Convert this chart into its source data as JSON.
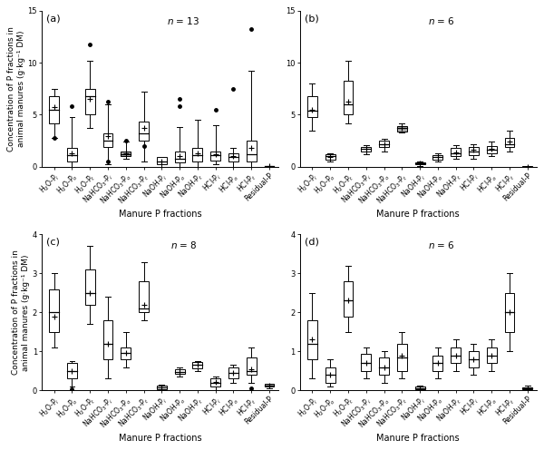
{
  "subplots": [
    {
      "label": "(a)",
      "n_val": "13",
      "ylim": [
        0,
        15
      ],
      "yticks": [
        0,
        5,
        10,
        15
      ],
      "boxes": [
        {
          "whislo": 2.8,
          "q1": 4.2,
          "med": 5.5,
          "q3": 6.8,
          "whishi": 7.5,
          "mean": 5.7,
          "fliers": [
            2.8
          ],
          "gray": false
        },
        {
          "whislo": 0.0,
          "q1": 0.5,
          "med": 1.1,
          "q3": 1.8,
          "whishi": 4.8,
          "mean": 1.3,
          "fliers": [
            5.8
          ],
          "gray": false
        },
        {
          "whislo": 3.7,
          "q1": 5.0,
          "med": 6.8,
          "q3": 7.5,
          "whishi": 10.2,
          "mean": 6.5,
          "fliers": [
            11.8
          ],
          "gray": false
        },
        {
          "whislo": 0.2,
          "q1": 1.9,
          "med": 2.5,
          "q3": 3.2,
          "whishi": 6.0,
          "mean": 2.9,
          "fliers": [
            0.5,
            6.3
          ],
          "gray": false
        },
        {
          "whislo": 0.8,
          "q1": 1.0,
          "med": 1.2,
          "q3": 1.5,
          "whishi": 2.4,
          "mean": 1.3,
          "fliers": [
            2.5
          ],
          "gray": true
        },
        {
          "whislo": 0.5,
          "q1": 2.5,
          "med": 3.2,
          "q3": 4.3,
          "whishi": 7.2,
          "mean": 3.7,
          "fliers": [
            2.0
          ],
          "gray": false
        },
        {
          "whislo": 0.0,
          "q1": 0.2,
          "med": 0.5,
          "q3": 0.9,
          "whishi": 0.9,
          "mean": 0.5,
          "fliers": [],
          "gray": false
        },
        {
          "whislo": 0.0,
          "q1": 0.4,
          "med": 0.8,
          "q3": 1.5,
          "whishi": 3.8,
          "mean": 1.0,
          "fliers": [
            5.8,
            6.5
          ],
          "gray": false
        },
        {
          "whislo": 0.0,
          "q1": 0.5,
          "med": 1.1,
          "q3": 1.8,
          "whishi": 4.5,
          "mean": 1.3,
          "fliers": [],
          "gray": false
        },
        {
          "whislo": 0.2,
          "q1": 0.6,
          "med": 1.1,
          "q3": 1.5,
          "whishi": 4.0,
          "mean": 1.2,
          "fliers": [
            5.5
          ],
          "gray": false
        },
        {
          "whislo": 0.0,
          "q1": 0.5,
          "med": 0.9,
          "q3": 1.3,
          "whishi": 1.8,
          "mean": 1.0,
          "fliers": [
            7.5
          ],
          "gray": false
        },
        {
          "whislo": 0.0,
          "q1": 0.5,
          "med": 1.2,
          "q3": 2.5,
          "whishi": 9.2,
          "mean": 1.8,
          "fliers": [
            13.2
          ],
          "gray": false
        },
        {
          "whislo": 0.0,
          "q1": 0.0,
          "med": 0.02,
          "q3": 0.05,
          "whishi": 0.05,
          "mean": 0.02,
          "fliers": [],
          "gray": false
        }
      ]
    },
    {
      "label": "(b)",
      "n_val": "6",
      "ylim": [
        0,
        15
      ],
      "yticks": [
        0,
        5,
        10,
        15
      ],
      "boxes": [
        {
          "whislo": 3.5,
          "q1": 4.8,
          "med": 5.4,
          "q3": 6.8,
          "whishi": 8.0,
          "mean": 5.5,
          "fliers": [],
          "gray": false
        },
        {
          "whislo": 0.5,
          "q1": 0.7,
          "med": 1.0,
          "q3": 1.2,
          "whishi": 1.3,
          "mean": 0.9,
          "fliers": [],
          "gray": false
        },
        {
          "whislo": 4.2,
          "q1": 5.0,
          "med": 6.0,
          "q3": 8.3,
          "whishi": 10.2,
          "mean": 6.3,
          "fliers": [],
          "gray": false
        },
        {
          "whislo": 1.2,
          "q1": 1.5,
          "med": 1.7,
          "q3": 1.9,
          "whishi": 2.1,
          "mean": 1.7,
          "fliers": [],
          "gray": false
        },
        {
          "whislo": 1.5,
          "q1": 1.9,
          "med": 2.2,
          "q3": 2.5,
          "whishi": 2.7,
          "mean": 2.2,
          "fliers": [],
          "gray": false
        },
        {
          "whislo": 3.3,
          "q1": 3.4,
          "med": 3.7,
          "q3": 3.9,
          "whishi": 4.2,
          "mean": 3.7,
          "fliers": [],
          "gray": true
        },
        {
          "whislo": 0.1,
          "q1": 0.2,
          "med": 0.3,
          "q3": 0.4,
          "whishi": 0.5,
          "mean": 0.3,
          "fliers": [],
          "gray": false
        },
        {
          "whislo": 0.5,
          "q1": 0.7,
          "med": 0.9,
          "q3": 1.1,
          "whishi": 1.3,
          "mean": 0.9,
          "fliers": [],
          "gray": false
        },
        {
          "whislo": 0.8,
          "q1": 1.0,
          "med": 1.3,
          "q3": 1.8,
          "whishi": 2.1,
          "mean": 1.4,
          "fliers": [],
          "gray": false
        },
        {
          "whislo": 0.8,
          "q1": 1.1,
          "med": 1.5,
          "q3": 1.9,
          "whishi": 2.2,
          "mean": 1.6,
          "fliers": [],
          "gray": false
        },
        {
          "whislo": 1.0,
          "q1": 1.3,
          "med": 1.6,
          "q3": 2.0,
          "whishi": 2.4,
          "mean": 1.7,
          "fliers": [],
          "gray": false
        },
        {
          "whislo": 1.5,
          "q1": 1.9,
          "med": 2.2,
          "q3": 2.8,
          "whishi": 3.5,
          "mean": 2.4,
          "fliers": [],
          "gray": false
        },
        {
          "whislo": 0.0,
          "q1": 0.0,
          "med": 0.01,
          "q3": 0.03,
          "whishi": 0.05,
          "mean": 0.01,
          "fliers": [],
          "gray": false
        }
      ]
    },
    {
      "label": "(c)",
      "n_val": "8",
      "ylim": [
        0,
        4
      ],
      "yticks": [
        0,
        1,
        2,
        3,
        4
      ],
      "boxes": [
        {
          "whislo": 1.1,
          "q1": 1.5,
          "med": 2.0,
          "q3": 2.6,
          "whishi": 3.0,
          "mean": 1.9,
          "fliers": [],
          "gray": false
        },
        {
          "whislo": 0.1,
          "q1": 0.3,
          "med": 0.5,
          "q3": 0.7,
          "whishi": 0.75,
          "mean": 0.5,
          "fliers": [
            0.03
          ],
          "gray": false
        },
        {
          "whislo": 1.7,
          "q1": 2.2,
          "med": 2.5,
          "q3": 3.1,
          "whishi": 3.7,
          "mean": 2.5,
          "fliers": [],
          "gray": false
        },
        {
          "whislo": 0.3,
          "q1": 0.8,
          "med": 1.2,
          "q3": 1.8,
          "whishi": 2.4,
          "mean": 1.2,
          "fliers": [],
          "gray": false
        },
        {
          "whislo": 0.6,
          "q1": 0.8,
          "med": 0.97,
          "q3": 1.1,
          "whishi": 1.5,
          "mean": 0.97,
          "fliers": [],
          "gray": false
        },
        {
          "whislo": 1.8,
          "q1": 2.0,
          "med": 2.1,
          "q3": 2.8,
          "whishi": 3.3,
          "mean": 2.2,
          "fliers": [],
          "gray": false
        },
        {
          "whislo": 0.0,
          "q1": 0.03,
          "med": 0.08,
          "q3": 0.12,
          "whishi": 0.15,
          "mean": 0.08,
          "fliers": [],
          "gray": false
        },
        {
          "whislo": 0.35,
          "q1": 0.42,
          "med": 0.48,
          "q3": 0.55,
          "whishi": 0.58,
          "mean": 0.48,
          "fliers": [],
          "gray": false
        },
        {
          "whislo": 0.5,
          "q1": 0.57,
          "med": 0.65,
          "q3": 0.72,
          "whishi": 0.75,
          "mean": 0.65,
          "fliers": [],
          "gray": false
        },
        {
          "whislo": 0.0,
          "q1": 0.1,
          "med": 0.2,
          "q3": 0.32,
          "whishi": 0.35,
          "mean": 0.22,
          "fliers": [],
          "gray": false
        },
        {
          "whislo": 0.2,
          "q1": 0.32,
          "med": 0.45,
          "q3": 0.58,
          "whishi": 0.65,
          "mean": 0.45,
          "fliers": [],
          "gray": false
        },
        {
          "whislo": 0.2,
          "q1": 0.4,
          "med": 0.5,
          "q3": 0.85,
          "whishi": 1.1,
          "mean": 0.55,
          "fliers": [
            0.05
          ],
          "gray": false
        },
        {
          "whislo": 0.06,
          "q1": 0.09,
          "med": 0.13,
          "q3": 0.16,
          "whishi": 0.18,
          "mean": 0.13,
          "fliers": [],
          "gray": true
        }
      ]
    },
    {
      "label": "(d)",
      "n_val": "6",
      "ylim": [
        0,
        4
      ],
      "yticks": [
        0,
        1,
        2,
        3,
        4
      ],
      "boxes": [
        {
          "whislo": 0.3,
          "q1": 0.8,
          "med": 1.2,
          "q3": 1.8,
          "whishi": 2.5,
          "mean": 1.3,
          "fliers": [],
          "gray": false
        },
        {
          "whislo": 0.1,
          "q1": 0.2,
          "med": 0.4,
          "q3": 0.6,
          "whishi": 0.8,
          "mean": 0.4,
          "fliers": [],
          "gray": false
        },
        {
          "whislo": 1.5,
          "q1": 1.9,
          "med": 2.3,
          "q3": 2.8,
          "whishi": 3.2,
          "mean": 2.3,
          "fliers": [],
          "gray": false
        },
        {
          "whislo": 0.3,
          "q1": 0.5,
          "med": 0.7,
          "q3": 0.95,
          "whishi": 1.1,
          "mean": 0.7,
          "fliers": [],
          "gray": false
        },
        {
          "whislo": 0.2,
          "q1": 0.4,
          "med": 0.6,
          "q3": 0.85,
          "whishi": 1.0,
          "mean": 0.6,
          "fliers": [],
          "gray": false
        },
        {
          "whislo": 0.3,
          "q1": 0.5,
          "med": 0.85,
          "q3": 1.2,
          "whishi": 1.5,
          "mean": 0.9,
          "fliers": [],
          "gray": false
        },
        {
          "whislo": 0.0,
          "q1": 0.02,
          "med": 0.05,
          "q3": 0.1,
          "whishi": 0.12,
          "mean": 0.05,
          "fliers": [],
          "gray": false
        },
        {
          "whislo": 0.3,
          "q1": 0.5,
          "med": 0.7,
          "q3": 0.9,
          "whishi": 1.1,
          "mean": 0.7,
          "fliers": [],
          "gray": false
        },
        {
          "whislo": 0.5,
          "q1": 0.7,
          "med": 0.9,
          "q3": 1.1,
          "whishi": 1.3,
          "mean": 0.9,
          "fliers": [],
          "gray": false
        },
        {
          "whislo": 0.4,
          "q1": 0.6,
          "med": 0.8,
          "q3": 1.0,
          "whishi": 1.2,
          "mean": 0.8,
          "fliers": [],
          "gray": false
        },
        {
          "whislo": 0.5,
          "q1": 0.7,
          "med": 0.9,
          "q3": 1.1,
          "whishi": 1.3,
          "mean": 0.9,
          "fliers": [],
          "gray": false
        },
        {
          "whislo": 1.0,
          "q1": 1.5,
          "med": 2.0,
          "q3": 2.5,
          "whishi": 3.0,
          "mean": 2.0,
          "fliers": [],
          "gray": false
        },
        {
          "whislo": 0.0,
          "q1": 0.02,
          "med": 0.05,
          "q3": 0.08,
          "whishi": 0.12,
          "mean": 0.05,
          "fliers": [],
          "gray": true
        }
      ]
    }
  ],
  "cat_labels_latex": [
    "H$_2$O-P$_i$",
    "H$_2$O-P$_o$",
    "H$_2$O-P$_t$",
    "NaHCO$_3$-P$_i$",
    "NaHCO$_3$-P$_o$",
    "NaHCO$_3$-P$_t$",
    "NaOH-P$_i$",
    "NaOH-P$_o$",
    "NaOH-P$_t$",
    "HCl-P$_i$",
    "HCl-P$_o$",
    "HCl-P$_t$",
    "Residual-P"
  ],
  "ylabel": "Concentration of P fractions in\nanimal manures (g·kg⁻¹ DM)",
  "xlabel": "Manure P fractions",
  "gray_color": "#aaaaaa",
  "background_color": "white",
  "fig_width": 6.0,
  "fig_height": 4.96
}
